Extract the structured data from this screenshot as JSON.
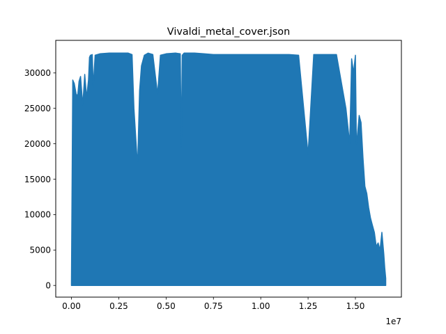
{
  "chart_data": {
    "type": "line",
    "title": "Vivaldi_metal_cover.json",
    "xlabel": "",
    "ylabel": "",
    "xlim": [
      -830000,
      17430000
    ],
    "ylim": [
      -1650,
      34600
    ],
    "x_ticks": [
      {
        "value": 0,
        "label": "0.00"
      },
      {
        "value": 2500000,
        "label": "0.25"
      },
      {
        "value": 5000000,
        "label": "0.50"
      },
      {
        "value": 7500000,
        "label": "0.75"
      },
      {
        "value": 10000000,
        "label": "1.00"
      },
      {
        "value": 12500000,
        "label": "1.25"
      },
      {
        "value": 15000000,
        "label": "1.50"
      }
    ],
    "x_offset_label": "1e7",
    "y_ticks": [
      {
        "value": 0,
        "label": "0"
      },
      {
        "value": 5000,
        "label": "5000"
      },
      {
        "value": 10000,
        "label": "10000"
      },
      {
        "value": 15000,
        "label": "15000"
      },
      {
        "value": 20000,
        "label": "20000"
      },
      {
        "value": 25000,
        "label": "25000"
      },
      {
        "value": 30000,
        "label": "30000"
      }
    ],
    "grid": false,
    "legend": "none",
    "series": [
      {
        "color": "#1f77b4",
        "envelope": {
          "x": [
            0,
            70000,
            150000,
            250000,
            330000,
            400000,
            480000,
            550000,
            600000,
            700000,
            800000,
            900000,
            950000,
            1000000,
            1100000,
            1150000,
            1250000,
            1500000,
            2000000,
            2500000,
            3000000,
            3200000,
            3300000,
            3450000,
            3500000,
            3600000,
            3700000,
            3850000,
            4050000,
            4300000,
            4550000,
            4700000,
            5000000,
            5500000,
            5750000,
            5800000,
            5850000,
            5950000,
            6100000,
            6500000,
            7000000,
            7500000,
            8000000,
            8500000,
            9000000,
            9500000,
            10000000,
            10500000,
            11000000,
            11500000,
            12000000,
            12500000,
            12800000,
            12850000,
            12900000,
            13000000,
            13200000,
            13500000,
            14000000,
            14500000,
            14700000,
            14800000,
            14900000,
            15000000,
            15050000,
            15100000,
            15200000,
            15300000,
            15400000,
            15500000,
            15600000,
            15700000,
            15800000,
            15900000,
            16000000,
            16100000,
            16200000,
            16300000,
            16400000,
            16500000,
            16550000,
            16600000
          ],
          "y": [
            300,
            29000,
            28500,
            27000,
            26800,
            28800,
            29500,
            27000,
            25500,
            29800,
            26500,
            29000,
            32200,
            32500,
            32600,
            28000,
            32500,
            32700,
            32800,
            32800,
            32800,
            32600,
            25000,
            18500,
            17500,
            27500,
            31000,
            32500,
            32800,
            32600,
            27000,
            32500,
            32700,
            32800,
            32700,
            19500,
            32500,
            32800,
            32800,
            32800,
            32700,
            32600,
            32600,
            32600,
            32600,
            32600,
            32600,
            32600,
            32600,
            32600,
            32500,
            18500,
            32600,
            32600,
            32600,
            32600,
            32600,
            32600,
            32600,
            25000,
            20000,
            32000,
            30000,
            32500,
            20000,
            21000,
            24000,
            23000,
            18000,
            14000,
            13000,
            11000,
            9500,
            8500,
            7500,
            5500,
            6000,
            5000,
            7500,
            4500,
            2500,
            1000
          ]
        }
      }
    ]
  }
}
